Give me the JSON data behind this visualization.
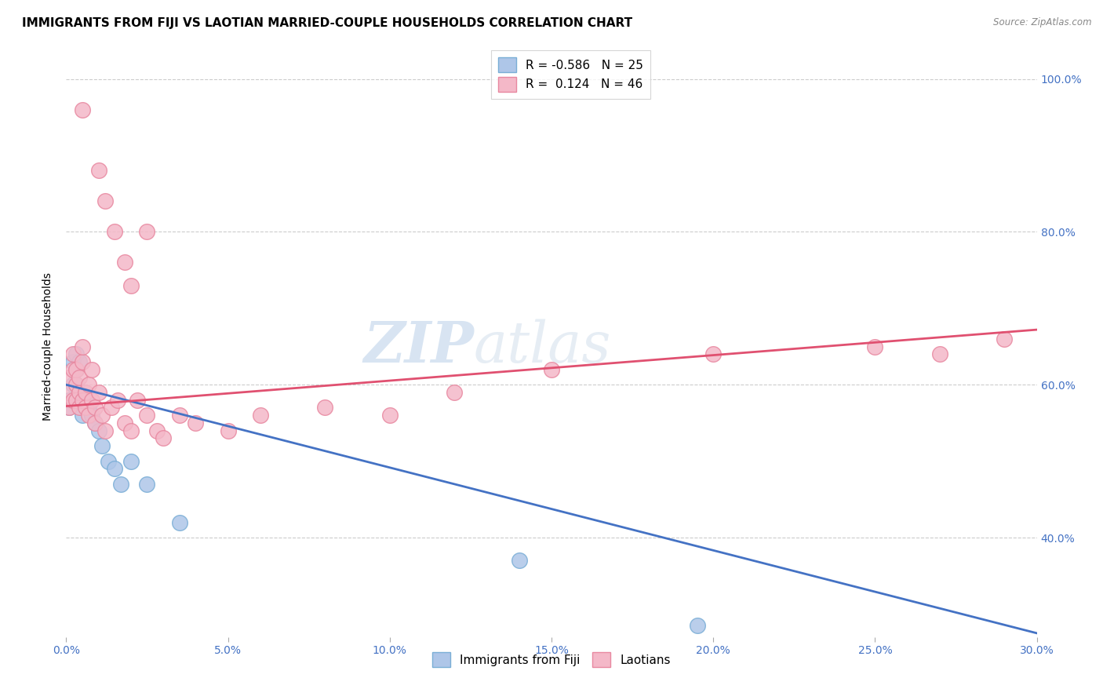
{
  "title": "IMMIGRANTS FROM FIJI VS LAOTIAN MARRIED-COUPLE HOUSEHOLDS CORRELATION CHART",
  "source": "Source: ZipAtlas.com",
  "ylabel": "Married-couple Households",
  "x_label_fiji": "Immigrants from Fiji",
  "x_label_laotians": "Laotians",
  "x_min": 0.0,
  "x_max": 0.3,
  "y_min": 0.27,
  "y_max": 1.03,
  "fiji_R": -0.586,
  "fiji_N": 25,
  "laotian_R": 0.124,
  "laotian_N": 46,
  "fiji_color": "#aec6e8",
  "fiji_edge_color": "#7aaed6",
  "laotian_color": "#f4b8c8",
  "laotian_edge_color": "#e888a0",
  "fiji_line_color": "#4472c4",
  "laotian_line_color": "#e05070",
  "title_fontsize": 11,
  "axis_label_fontsize": 10,
  "tick_fontsize": 10,
  "legend_fontsize": 11,
  "watermark_text": "ZIPatlas",
  "fiji_x": [
    0.001,
    0.001,
    0.002,
    0.002,
    0.003,
    0.003,
    0.003,
    0.004,
    0.004,
    0.005,
    0.005,
    0.006,
    0.007,
    0.008,
    0.009,
    0.01,
    0.011,
    0.013,
    0.015,
    0.017,
    0.02,
    0.025,
    0.035,
    0.14,
    0.195
  ],
  "fiji_y": [
    0.58,
    0.57,
    0.6,
    0.63,
    0.64,
    0.62,
    0.6,
    0.59,
    0.63,
    0.57,
    0.56,
    0.58,
    0.57,
    0.56,
    0.55,
    0.54,
    0.52,
    0.5,
    0.49,
    0.47,
    0.5,
    0.47,
    0.42,
    0.37,
    0.285
  ],
  "laotian_x": [
    0.001,
    0.001,
    0.001,
    0.002,
    0.002,
    0.002,
    0.003,
    0.003,
    0.003,
    0.004,
    0.004,
    0.004,
    0.005,
    0.005,
    0.005,
    0.006,
    0.006,
    0.007,
    0.007,
    0.008,
    0.008,
    0.009,
    0.009,
    0.01,
    0.011,
    0.012,
    0.014,
    0.016,
    0.018,
    0.02,
    0.022,
    0.025,
    0.028,
    0.03,
    0.035,
    0.04,
    0.05,
    0.06,
    0.08,
    0.1,
    0.12,
    0.15,
    0.2,
    0.25,
    0.27,
    0.29
  ],
  "laotian_y": [
    0.57,
    0.59,
    0.61,
    0.58,
    0.62,
    0.64,
    0.58,
    0.6,
    0.62,
    0.57,
    0.59,
    0.61,
    0.58,
    0.63,
    0.65,
    0.57,
    0.59,
    0.56,
    0.6,
    0.58,
    0.62,
    0.55,
    0.57,
    0.59,
    0.56,
    0.54,
    0.57,
    0.58,
    0.55,
    0.54,
    0.58,
    0.56,
    0.54,
    0.53,
    0.56,
    0.55,
    0.54,
    0.56,
    0.57,
    0.56,
    0.59,
    0.62,
    0.64,
    0.65,
    0.64,
    0.66
  ],
  "laotian_outlier_x": [
    0.005,
    0.01,
    0.012,
    0.015,
    0.018,
    0.02,
    0.025
  ],
  "laotian_outlier_y": [
    0.96,
    0.88,
    0.84,
    0.8,
    0.76,
    0.73,
    0.8
  ],
  "fiji_line_x0": 0.0,
  "fiji_line_y0": 0.6,
  "fiji_line_x1": 0.3,
  "fiji_line_y1": 0.275,
  "laotian_line_x0": 0.0,
  "laotian_line_y0": 0.572,
  "laotian_line_x1": 0.3,
  "laotian_line_y1": 0.672
}
